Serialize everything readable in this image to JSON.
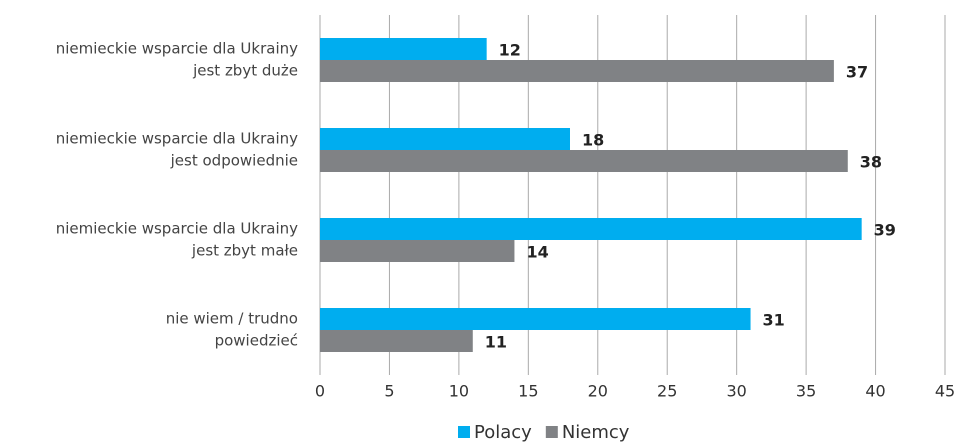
{
  "chart_data": {
    "type": "hbar",
    "categories": [
      [
        "niemieckie wsparcie dla Ukrainy",
        "jest zbyt duże"
      ],
      [
        "niemieckie wsparcie dla Ukrainy",
        "jest odpowiednie"
      ],
      [
        "niemieckie wsparcie dla Ukrainy",
        "jest zbyt małe"
      ],
      [
        "nie wiem / trudno",
        "powiedzieć"
      ]
    ],
    "series": [
      {
        "name": "Polacy",
        "color": "#00adef",
        "values": [
          12,
          18,
          39,
          31
        ]
      },
      {
        "name": "Niemcy",
        "color": "#808285",
        "values": [
          37,
          38,
          14,
          11
        ]
      }
    ],
    "xlim": [
      0,
      45
    ],
    "xticks": [
      0,
      5,
      10,
      15,
      20,
      25,
      30,
      35,
      40,
      45
    ],
    "grid": true,
    "legend": "bottom"
  }
}
